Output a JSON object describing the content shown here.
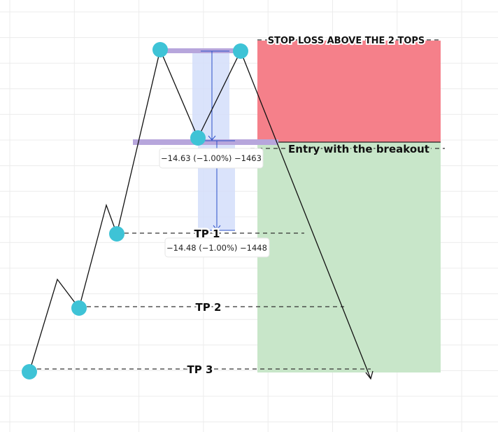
{
  "annotations": {
    "stop_loss": "STOP LOSS ABOVE THE 2 TOPS",
    "entry": "Entry with the breakout",
    "tp1": "TP 1",
    "tp2": "TP 2",
    "tp3": "TP 3"
  },
  "measurements": [
    {
      "label": "−14.63 (−1.00%) −1463"
    },
    {
      "label": "−14.48 (−1.00%) −1448"
    }
  ],
  "colors": {
    "stop_zone": "#f5808a",
    "target_zone": "#c8e6c9",
    "pivot_marker": "#3ec3d6",
    "level_bar": "#b7a6dc",
    "measure_fill": "#d4defa",
    "measure_line": "#2a4fc8"
  }
}
